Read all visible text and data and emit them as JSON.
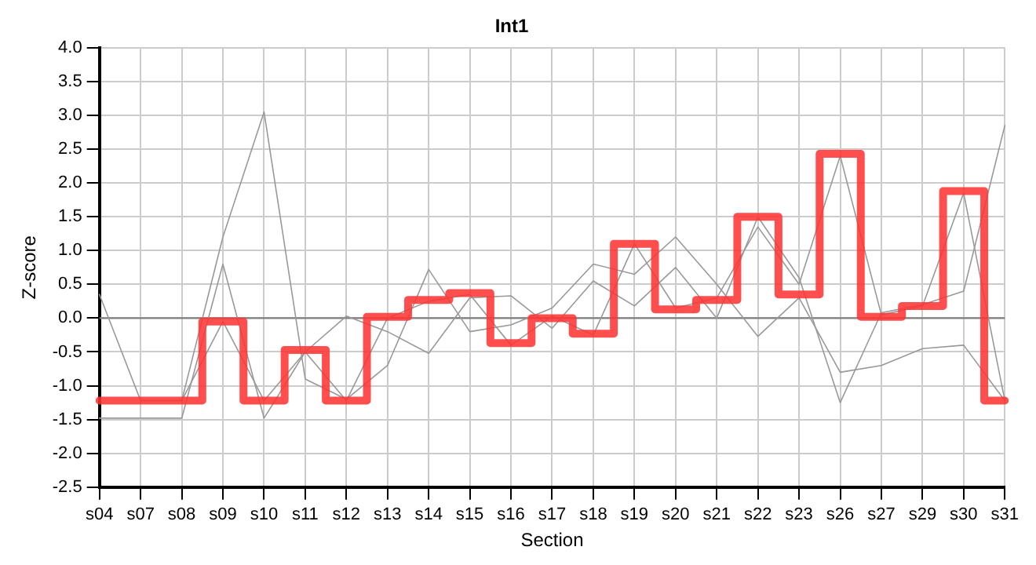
{
  "chart_data": {
    "type": "line",
    "title": "Int1",
    "xlabel": "Section",
    "ylabel": "Z-score",
    "categories": [
      "s04",
      "s07",
      "s08",
      "s09",
      "s10",
      "s11",
      "s12",
      "s13",
      "s14",
      "s15",
      "s16",
      "s17",
      "s18",
      "s19",
      "s20",
      "s21",
      "s22",
      "s23",
      "s26",
      "s27",
      "s29",
      "s30",
      "s31"
    ],
    "series": [
      {
        "type": "line",
        "color": "#999999",
        "values": [
          0.35,
          -1.22,
          -1.22,
          1.2,
          3.05,
          -0.9,
          -1.2,
          -0.7,
          0.72,
          -0.2,
          -0.1,
          0.15,
          0.8,
          0.65,
          1.2,
          0.5,
          -0.27,
          0.3,
          -0.8,
          -0.7,
          -0.45,
          -0.4,
          -1.22
        ]
      },
      {
        "type": "line",
        "color": "#999999",
        "values": [
          -1.48,
          -1.48,
          -1.48,
          0.8,
          -1.48,
          -0.5,
          0.03,
          -0.2,
          -0.52,
          0.3,
          0.33,
          -0.15,
          0.55,
          0.18,
          0.75,
          0.0,
          1.5,
          0.6,
          -1.25,
          0.08,
          0.2,
          0.4,
          2.85
        ]
      },
      {
        "type": "line",
        "color": "#999999",
        "values": [
          null,
          -1.22,
          -1.22,
          -0.05,
          -1.22,
          -0.5,
          -1.22,
          0.0,
          0.25,
          0.35,
          -0.4,
          0.03,
          -0.25,
          1.1,
          0.15,
          0.3,
          1.35,
          0.5,
          2.4,
          0.05,
          0.18,
          1.85,
          -1.22
        ]
      },
      {
        "type": "step",
        "color": "#ff3333",
        "values": [
          -1.22,
          -1.22,
          -1.22,
          -0.05,
          -1.22,
          -0.47,
          -1.22,
          0.02,
          0.27,
          0.37,
          -0.37,
          0.0,
          -0.23,
          1.1,
          0.13,
          0.27,
          1.5,
          0.35,
          2.43,
          0.02,
          0.18,
          1.88,
          -1.22
        ]
      }
    ],
    "ylim": [
      -2.5,
      4.0
    ],
    "yticks": [
      {
        "value": -2.5,
        "label": "-2.5"
      },
      {
        "value": -2,
        "label": "-2.0"
      },
      {
        "value": -1.5,
        "label": "-1.5"
      },
      {
        "value": -1,
        "label": "-1.0"
      },
      {
        "value": -0.5,
        "label": "-0.5"
      },
      {
        "value": 0,
        "label": "0.0"
      },
      {
        "value": 0.5,
        "label": "0.5"
      },
      {
        "value": 1,
        "label": "1.0"
      },
      {
        "value": 1.5,
        "label": "1.5"
      },
      {
        "value": 2,
        "label": "2.0"
      },
      {
        "value": 2.5,
        "label": "2.5"
      },
      {
        "value": 3,
        "label": "3.0"
      },
      {
        "value": 3.5,
        "label": "3.5"
      },
      {
        "value": 4,
        "label": "4.0"
      }
    ],
    "grid": true,
    "legend": false,
    "marker": "none",
    "line_style": "solid",
    "ref_lines": [
      {
        "axis": "y",
        "value": 0,
        "color": "#808080"
      }
    ]
  }
}
